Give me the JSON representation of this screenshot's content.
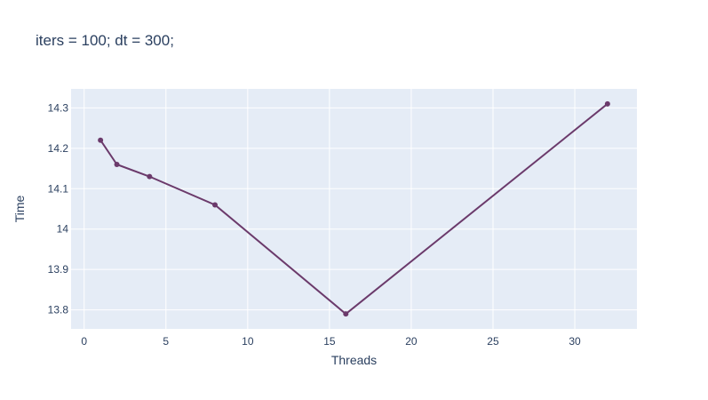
{
  "chart_data": {
    "type": "line",
    "title": "iters = 100; dt = 300;",
    "xlabel": "Threads",
    "ylabel": "Time",
    "xlim": [
      -0.8,
      33.8
    ],
    "ylim": [
      13.753,
      14.347
    ],
    "xticks": [
      0,
      5,
      10,
      15,
      20,
      25,
      30
    ],
    "xtick_labels": [
      "0",
      "5",
      "10",
      "15",
      "20",
      "25",
      "30"
    ],
    "yticks": [
      13.8,
      13.9,
      14.0,
      14.1,
      14.2,
      14.3
    ],
    "ytick_labels": [
      "13.8",
      "13.9",
      "14",
      "14.1",
      "14.2",
      "14.3"
    ],
    "grid": true,
    "colors": {
      "plot_bg": "#e5ecf6",
      "grid": "#ffffff",
      "line": "#6b3a6b",
      "text": "#2a3f5f"
    },
    "series": [
      {
        "x": [
          1,
          2,
          4,
          8,
          16,
          32
        ],
        "y": [
          14.22,
          14.16,
          14.13,
          14.06,
          13.79,
          14.31
        ]
      }
    ]
  }
}
